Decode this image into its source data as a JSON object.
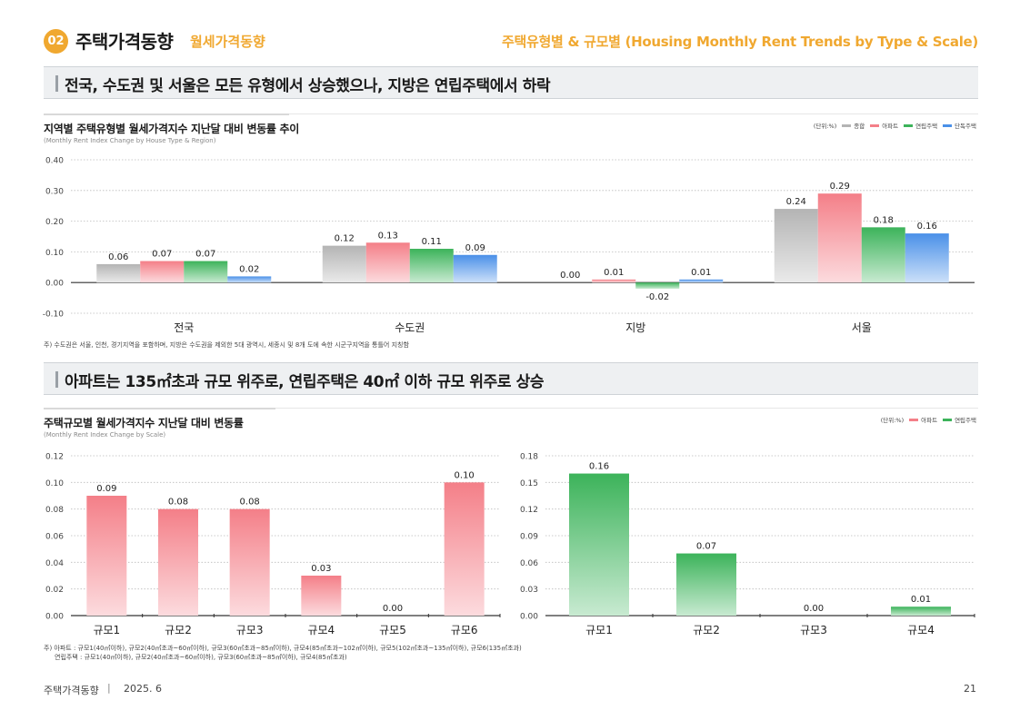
{
  "header": {
    "badge": "02",
    "title": "주택가격동향",
    "subtitle": "월세가격동향",
    "right_title": "주택유형별 & 규모별 (Housing Monthly Rent Trends by Type & Scale)"
  },
  "section1": {
    "banner": "전국, 수도권 및 서울은 모든 유형에서 상승했으나, 지방은 연립주택에서 하락",
    "chart_title": "지역별 주택유형별 월세가격지수 지난달 대비 변동률 추이",
    "chart_subtitle": "(Monthly Rent Index Change by House Type & Region)",
    "legend_unit": "(단위:%)",
    "legend": [
      "종합",
      "아파트",
      "연립주택",
      "단독주택"
    ],
    "note": "주) 수도권은 서울, 인천, 경기지역을 포함하며, 지방은 수도권을 제외한 5대 광역시, 세종시 및 8개 도에 속한 시군구지역을 통틀어 지칭함"
  },
  "section2": {
    "banner": "아파트는 135㎡초과 규모 위주로, 연립주택은 40㎡ 이하 규모 위주로 상승",
    "chart_title": "주택규모별 월세가격지수 지난달 대비 변동률",
    "chart_subtitle": "(Monthly Rent Index Change by Scale)",
    "legend_unit": "(단위:%)",
    "legend": [
      "아파트",
      "연립주택"
    ],
    "note_line1": "주) 아파트 : 규모1(40㎡이하), 규모2(40㎡초과~60㎡이하), 규모3(60㎡초과~85㎡이하), 규모4(85㎡초과~102㎡이하), 규모5(102㎡초과~135㎡이하), 규모6(135㎡초과)",
    "note_line2": "연립주택 : 규모1(40㎡이하), 규모2(40㎡초과~60㎡이하), 규모3(60㎡초과~85㎡이하), 규모4(85㎡초과)"
  },
  "footer": {
    "left": "주택가격동향",
    "separator": "|",
    "date": "2025. 6",
    "page": "21"
  },
  "colors": {
    "accent": "#f0a830",
    "total": "#b4b4b4",
    "apartment": "#f47f88",
    "rowhouse": "#3cb35a",
    "detached": "#4a90e8"
  },
  "chart_data": [
    {
      "type": "bar",
      "categories": [
        "전국",
        "수도권",
        "지방",
        "서울"
      ],
      "series": [
        {
          "name": "종합",
          "values": [
            0.06,
            0.12,
            0.0,
            0.24
          ]
        },
        {
          "name": "아파트",
          "values": [
            0.07,
            0.13,
            0.01,
            0.29
          ]
        },
        {
          "name": "연립주택",
          "values": [
            0.07,
            0.11,
            -0.02,
            0.18
          ]
        },
        {
          "name": "단독주택",
          "values": [
            0.02,
            0.09,
            0.01,
            0.16
          ]
        }
      ],
      "data_labels": [
        [
          "0.06",
          "0.12",
          "0.00",
          "0.24"
        ],
        [
          "0.07",
          "0.13",
          "0.01",
          "0.29"
        ],
        [
          "0.07",
          "0.11",
          "-0.02",
          "0.18"
        ],
        [
          "0.02",
          "0.09",
          "0.01",
          "0.16"
        ]
      ],
      "yticks": [
        "0.40",
        "0.30",
        "0.20",
        "0.10",
        "0.00",
        "-0.10"
      ],
      "ylim": [
        -0.1,
        0.4
      ],
      "grid": true
    },
    {
      "type": "bar",
      "categories": [
        "규모1",
        "규모2",
        "규모3",
        "규모4",
        "규모5",
        "규모6"
      ],
      "series": [
        {
          "name": "아파트",
          "values": [
            0.09,
            0.08,
            0.08,
            0.03,
            0.0,
            0.1
          ]
        }
      ],
      "data_labels": [
        "0.09",
        "0.08",
        "0.08",
        "0.03",
        "0.00",
        "0.10"
      ],
      "yticks": [
        "0.12",
        "0.10",
        "0.08",
        "0.06",
        "0.04",
        "0.02",
        "0.00"
      ],
      "ylim": [
        0.0,
        0.12
      ],
      "grid": true
    },
    {
      "type": "bar",
      "categories": [
        "규모1",
        "규모2",
        "규모3",
        "규모4"
      ],
      "series": [
        {
          "name": "연립주택",
          "values": [
            0.16,
            0.07,
            0.0,
            0.01
          ]
        }
      ],
      "data_labels": [
        "0.16",
        "0.07",
        "0.00",
        "0.01"
      ],
      "yticks": [
        "0.18",
        "0.15",
        "0.12",
        "0.09",
        "0.06",
        "0.03",
        "0.00"
      ],
      "ylim": [
        0.0,
        0.18
      ],
      "grid": true
    }
  ]
}
